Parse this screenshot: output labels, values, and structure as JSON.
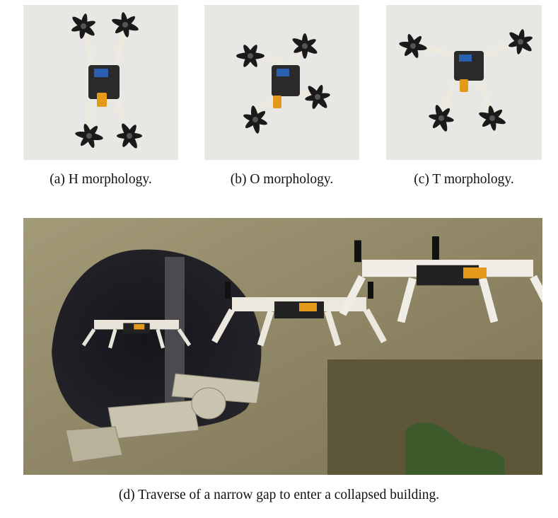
{
  "figure": {
    "subfigures": [
      {
        "id": "a",
        "caption": "(a) H morphology."
      },
      {
        "id": "b",
        "caption": "(b) O morphology."
      },
      {
        "id": "c",
        "caption": "(c) T morphology."
      },
      {
        "id": "d",
        "caption": "(d) Traverse of a narrow gap to enter a collapsed building."
      }
    ]
  }
}
